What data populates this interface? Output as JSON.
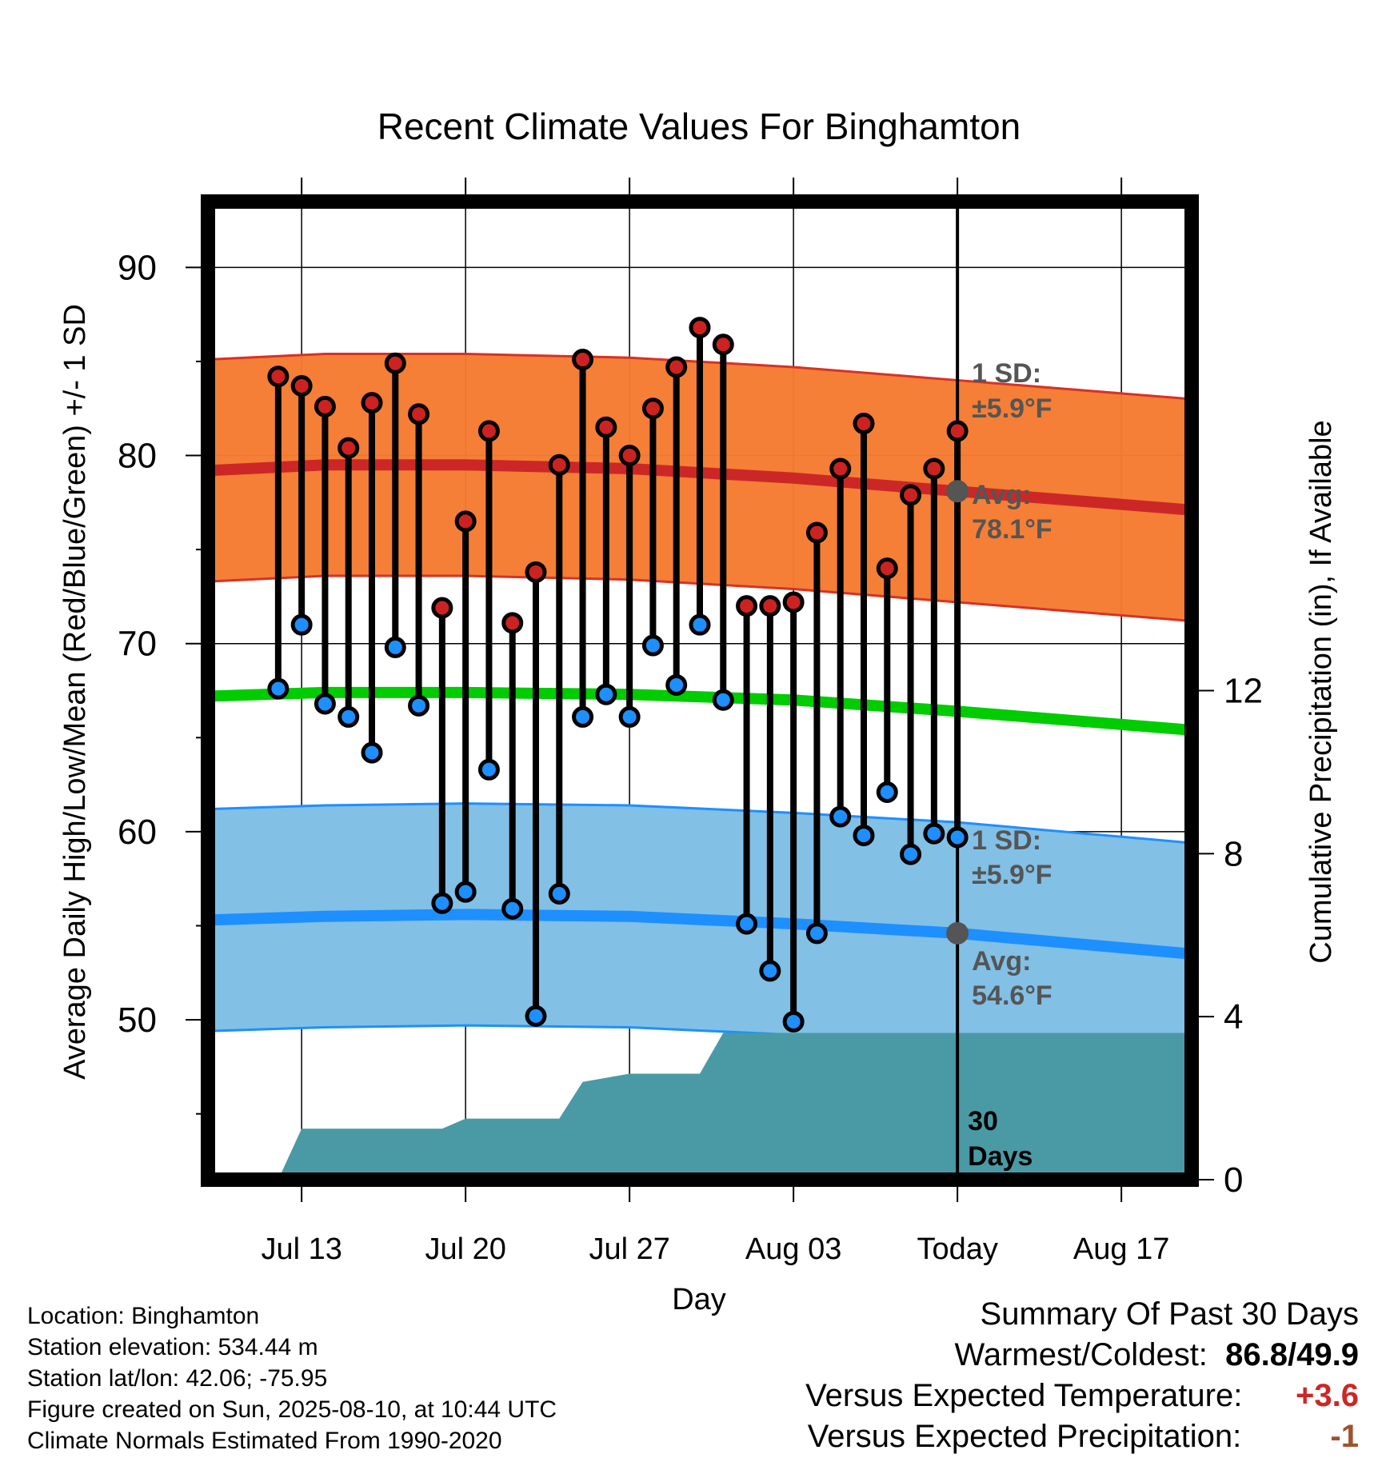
{
  "chart_data": {
    "type": "line",
    "title": "Recent Climate Values For Binghamton",
    "xlabel": "Day",
    "ylabel": "Average Daily High/Low/Mean (Red/Blue/Green) +/- 1 SD",
    "ylabel_right": "Cumulative Precipitation (in), If Available",
    "x_ticks": [
      "Jul 13",
      "Jul 20",
      "Jul 27",
      "Aug 03",
      "Today",
      "Aug 17"
    ],
    "x_tick_dates": [
      "2025-07-13",
      "2025-07-20",
      "2025-07-27",
      "2025-08-03",
      "2025-08-10",
      "2025-08-17"
    ],
    "xlim": [
      "2025-07-09",
      "2025-08-20"
    ],
    "ylim": [
      41.5,
      93.5
    ],
    "y_ticks": [
      50,
      60,
      70,
      80,
      90
    ],
    "ylim_right": [
      0,
      24
    ],
    "y_ticks_right": [
      0,
      4,
      8,
      12
    ],
    "grid": true,
    "today": "2025-08-10",
    "days": [
      "2025-07-12",
      "2025-07-13",
      "2025-07-14",
      "2025-07-15",
      "2025-07-16",
      "2025-07-17",
      "2025-07-18",
      "2025-07-19",
      "2025-07-20",
      "2025-07-21",
      "2025-07-22",
      "2025-07-23",
      "2025-07-24",
      "2025-07-25",
      "2025-07-26",
      "2025-07-27",
      "2025-07-28",
      "2025-07-29",
      "2025-07-30",
      "2025-07-31",
      "2025-08-01",
      "2025-08-02",
      "2025-08-03",
      "2025-08-04",
      "2025-08-05",
      "2025-08-06",
      "2025-08-07",
      "2025-08-08",
      "2025-08-09",
      "2025-08-10"
    ],
    "series": [
      {
        "name": "High",
        "color": "#cc2222",
        "values": [
          84.2,
          83.7,
          82.6,
          80.4,
          82.8,
          84.9,
          82.2,
          71.9,
          76.5,
          81.3,
          71.1,
          73.8,
          79.5,
          85.1,
          81.5,
          80.0,
          82.5,
          84.7,
          86.8,
          85.9,
          72.0,
          72.0,
          72.2,
          75.9,
          79.3,
          81.7,
          74.0,
          77.9,
          79.3,
          81.3
        ]
      },
      {
        "name": "Low",
        "color": "#1e8fff",
        "values": [
          67.6,
          71.0,
          66.8,
          66.1,
          64.2,
          69.8,
          66.7,
          56.2,
          56.8,
          63.3,
          55.9,
          50.2,
          56.7,
          66.1,
          67.3,
          66.1,
          69.9,
          67.8,
          71.0,
          67.0,
          55.1,
          52.6,
          49.9,
          54.6,
          60.8,
          59.8,
          62.1,
          58.8,
          59.9,
          59.7
        ]
      }
    ],
    "normals": {
      "dates": [
        "2025-07-09",
        "2025-07-14",
        "2025-07-20",
        "2025-07-27",
        "2025-08-03",
        "2025-08-10",
        "2025-08-20"
      ],
      "high_avg": [
        79.2,
        79.5,
        79.5,
        79.3,
        78.8,
        78.1,
        77.1
      ],
      "low_avg": [
        55.3,
        55.5,
        55.6,
        55.5,
        55.1,
        54.6,
        53.5
      ],
      "mean_avg": [
        67.2,
        67.4,
        67.4,
        67.3,
        67.0,
        66.4,
        65.4
      ],
      "sd": 5.9
    },
    "precipitation": {
      "dates": [
        "2025-07-12",
        "2025-07-13",
        "2025-07-19",
        "2025-07-20",
        "2025-07-24",
        "2025-07-25",
        "2025-07-27",
        "2025-07-30",
        "2025-07-31",
        "2025-08-20"
      ],
      "cumulative": [
        0.0,
        1.25,
        1.25,
        1.5,
        1.5,
        2.4,
        2.6,
        2.6,
        3.6,
        3.6
      ]
    },
    "annotations": {
      "high_sd": "1 SD:",
      "high_sd_value": "±5.9°F",
      "high_avg_label": "Avg:",
      "high_avg_value": "78.1°F",
      "low_sd": "1 SD:",
      "low_sd_value": "±5.9°F",
      "low_avg_label": "Avg:",
      "low_avg_value": "54.6°F",
      "period_number": "30",
      "period_unit": "Days"
    },
    "colors": {
      "high_band": "#f57b2f",
      "high_band_edge": "#d63227",
      "high_avg_line": "#cc2727",
      "low_band": "#82c0e6",
      "low_band_edge": "#1e8fff",
      "low_avg_line": "#1e8fff",
      "mean_line": "#00cc00",
      "precip_fill": "#4a9aa5",
      "annotation": "#555555"
    }
  },
  "footer": {
    "location": "Location: Binghamton",
    "elevation": "Station elevation: 534.44 m",
    "latlon": "Station lat/lon: 42.06; -75.95",
    "created": "Figure created on Sun, 2025-08-10, at 10:44 UTC",
    "normals": "Climate Normals Estimated From 1990-2020"
  },
  "summary": {
    "title": "Summary Of Past 30 Days",
    "warm_cold_label": "Warmest/Coldest:",
    "warm_value": "86.8",
    "cold_value": "49.9",
    "temp_label": "Versus Expected Temperature:",
    "temp_value": "+3.6",
    "temp_color": "#cc2727",
    "precip_label": "Versus Expected Precipitation:",
    "precip_value": "-1",
    "precip_color": "#a0522d"
  }
}
